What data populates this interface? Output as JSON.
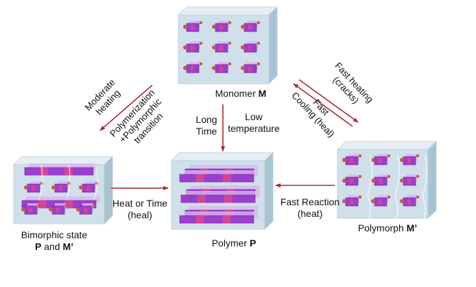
{
  "states": {
    "monomer": {
      "name": "Monomer",
      "symbol": "M"
    },
    "polymer": {
      "name": "Polymer",
      "symbol": "P"
    },
    "polymorph": {
      "name": "Polymorph",
      "symbol": "M’"
    },
    "bimorphic": {
      "line1": "Bimorphic state",
      "p": "P",
      "and": "and",
      "m": "M’"
    }
  },
  "transitions": {
    "monomer_to_bimorphic": {
      "top1": "Moderate",
      "top2": "heating",
      "bottom1": "Polymerization",
      "bottom2": "+Polymorphic",
      "bottom3": "transition"
    },
    "monomer_to_polymer": {
      "left1": "Long",
      "left2": "Time",
      "right1": "Low",
      "right2": "temperature"
    },
    "monomer_polymorph": {
      "top1": "Fast heating",
      "top2": "(cracks)",
      "bottom1": "Fast",
      "bottom2": "Cooling (heal)"
    },
    "bimorphic_to_polymer": {
      "line1": "Heat or Time",
      "line2": "(heal)"
    },
    "polymorph_to_polymer": {
      "line1": "Fast Reaction",
      "line2": "(heat)"
    }
  },
  "colors": {
    "arrow": "#b0242c",
    "box_face": "#cfe0ea",
    "box_side": "#a9c3d2",
    "box_top": "#e4eef4",
    "crystal": "#9b3fcf",
    "crystal_dark": "#6a1f9a",
    "crystal_pink": "#e0458f",
    "crystal_light": "#d9b6ee",
    "dot": "#c85a3a"
  }
}
